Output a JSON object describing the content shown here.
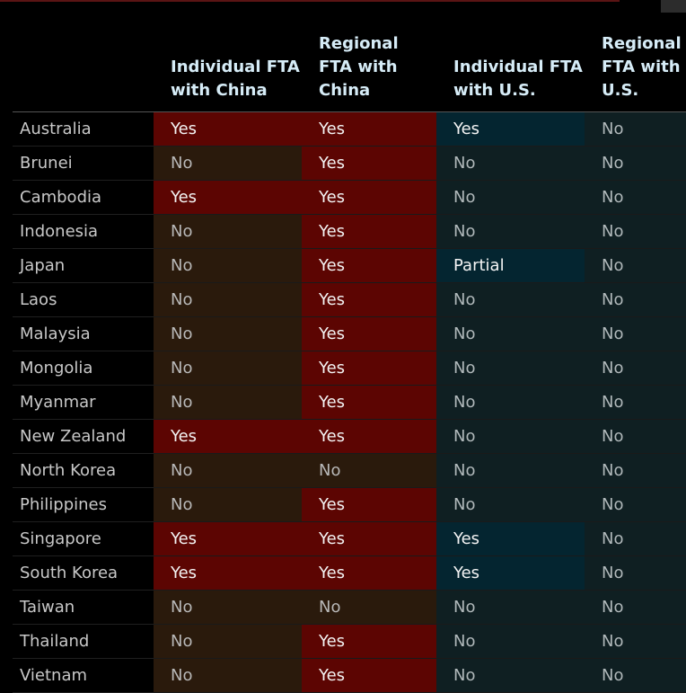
{
  "table": {
    "headers": [
      "",
      "Individual FTA with China",
      "Regional FTA with China",
      "Individual FTA with U.S.",
      "Regional FTA with U.S."
    ],
    "rows": [
      {
        "country": "Australia",
        "values": [
          "Yes",
          "Yes",
          "Yes",
          "No"
        ]
      },
      {
        "country": "Brunei",
        "values": [
          "No",
          "Yes",
          "No",
          "No"
        ]
      },
      {
        "country": "Cambodia",
        "values": [
          "Yes",
          "Yes",
          "No",
          "No"
        ]
      },
      {
        "country": "Indonesia",
        "values": [
          "No",
          "Yes",
          "No",
          "No"
        ]
      },
      {
        "country": "Japan",
        "values": [
          "No",
          "Yes",
          "Partial",
          "No"
        ]
      },
      {
        "country": "Laos",
        "values": [
          "No",
          "Yes",
          "No",
          "No"
        ]
      },
      {
        "country": "Malaysia",
        "values": [
          "No",
          "Yes",
          "No",
          "No"
        ]
      },
      {
        "country": "Mongolia",
        "values": [
          "No",
          "Yes",
          "No",
          "No"
        ]
      },
      {
        "country": "Myanmar",
        "values": [
          "No",
          "Yes",
          "No",
          "No"
        ]
      },
      {
        "country": "New Zealand",
        "values": [
          "Yes",
          "Yes",
          "No",
          "No"
        ]
      },
      {
        "country": "North Korea",
        "values": [
          "No",
          "No",
          "No",
          "No"
        ]
      },
      {
        "country": "Philippines",
        "values": [
          "No",
          "Yes",
          "No",
          "No"
        ]
      },
      {
        "country": "Singapore",
        "values": [
          "Yes",
          "Yes",
          "Yes",
          "No"
        ]
      },
      {
        "country": "South Korea",
        "values": [
          "Yes",
          "Yes",
          "Yes",
          "No"
        ]
      },
      {
        "country": "Taiwan",
        "values": [
          "No",
          "No",
          "No",
          "No"
        ]
      },
      {
        "country": "Thailand",
        "values": [
          "No",
          "Yes",
          "No",
          "No"
        ]
      },
      {
        "country": "Vietnam",
        "values": [
          "No",
          "Yes",
          "No",
          "No"
        ]
      }
    ]
  },
  "colors": {
    "china_yes": "#5c0502",
    "china_no": "#2a1a0c",
    "us_yes": "#042530",
    "us_no": "#0f1f22",
    "header_text": "#d6ecf7"
  },
  "chart_data": {
    "type": "table",
    "columns": [
      "Individual FTA with China",
      "Regional FTA with China",
      "Individual FTA with U.S.",
      "Regional FTA with U.S."
    ],
    "rows": [
      [
        "Australia",
        "Yes",
        "Yes",
        "Yes",
        "No"
      ],
      [
        "Brunei",
        "No",
        "Yes",
        "No",
        "No"
      ],
      [
        "Cambodia",
        "Yes",
        "Yes",
        "No",
        "No"
      ],
      [
        "Indonesia",
        "No",
        "Yes",
        "No",
        "No"
      ],
      [
        "Japan",
        "No",
        "Yes",
        "Partial",
        "No"
      ],
      [
        "Laos",
        "No",
        "Yes",
        "No",
        "No"
      ],
      [
        "Malaysia",
        "No",
        "Yes",
        "No",
        "No"
      ],
      [
        "Mongolia",
        "No",
        "Yes",
        "No",
        "No"
      ],
      [
        "Myanmar",
        "No",
        "Yes",
        "No",
        "No"
      ],
      [
        "New Zealand",
        "Yes",
        "Yes",
        "No",
        "No"
      ],
      [
        "North Korea",
        "No",
        "No",
        "No",
        "No"
      ],
      [
        "Philippines",
        "No",
        "Yes",
        "No",
        "No"
      ],
      [
        "Singapore",
        "Yes",
        "Yes",
        "Yes",
        "No"
      ],
      [
        "South Korea",
        "Yes",
        "Yes",
        "Yes",
        "No"
      ],
      [
        "Taiwan",
        "No",
        "No",
        "No",
        "No"
      ],
      [
        "Thailand",
        "No",
        "Yes",
        "No",
        "No"
      ],
      [
        "Vietnam",
        "No",
        "Yes",
        "No",
        "No"
      ]
    ]
  }
}
